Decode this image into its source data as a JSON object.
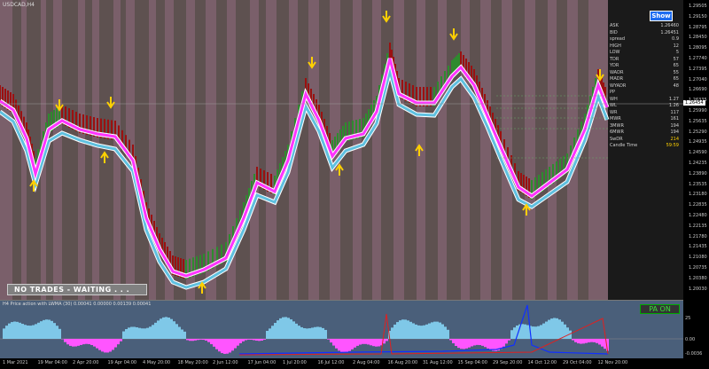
{
  "chart": {
    "title": "USDCAD,H4",
    "show_button": "Show",
    "status_banner": "NO TRADES - WAITING . . .",
    "current_price_tag": "1.26454"
  },
  "info_panel": [
    {
      "k": "ASK",
      "v": "1.26460"
    },
    {
      "k": "BID",
      "v": "1.26451"
    },
    {
      "k": "spread",
      "v": "0.9"
    },
    {
      "k": "HIGH",
      "v": "12"
    },
    {
      "k": "LOW",
      "v": "5"
    },
    {
      "k": "TDR",
      "v": "57"
    },
    {
      "k": "YDR",
      "v": "65"
    },
    {
      "k": "WADR",
      "v": "55"
    },
    {
      "k": "MADR",
      "v": "65"
    },
    {
      "k": "WYADR",
      "v": "48"
    },
    {
      "k": "PP",
      "v": ""
    },
    {
      "k": "WH",
      "v": "1.27"
    },
    {
      "k": "WL",
      "v": "1.26"
    },
    {
      "k": "WR",
      "v": "117"
    },
    {
      "k": "MWR",
      "v": "161"
    },
    {
      "k": "3MWR",
      "v": "194"
    },
    {
      "k": "6MWR",
      "v": "194"
    },
    {
      "k": "SwDR",
      "v": "214"
    },
    {
      "k": "Candle Time",
      "v": "59:59"
    }
  ],
  "price_axis": [
    "1.29505",
    "1.29150",
    "1.28795",
    "1.28450",
    "1.28095",
    "1.27740",
    "1.27395",
    "1.27040",
    "1.26690",
    "1.26335",
    "1.25990",
    "1.25635",
    "1.25290",
    "1.24935",
    "1.24590",
    "1.24235",
    "1.23890",
    "1.23535",
    "1.23180",
    "1.22835",
    "1.22480",
    "1.22135",
    "1.21780",
    "1.21435",
    "1.21080",
    "1.20735",
    "1.20380",
    "1.20030"
  ],
  "indicator": {
    "title": "H4 Price action with LWMA (30) 0.00041 0.00000 0.00139 0.00041",
    "pa_button": "PA ON",
    "axis": [
      "25",
      "0.00",
      "-0.0036"
    ]
  },
  "time_axis": [
    "1 Mar 2021",
    "19 Mar 04:00",
    "2 Apr 20:00",
    "19 Apr 04:00",
    "4 May 20:00",
    "18 May 20:00",
    "2 Jun 12:00",
    "17 Jun 04:00",
    "1 Jul 20:00",
    "16 Jul 12:00",
    "2 Aug 04:00",
    "16 Aug 20:00",
    "31 Aug 12:00",
    "15 Sep 04:00",
    "29 Sep 20:00",
    "14 Oct 12:00",
    "29 Oct 04:00",
    "12 Nov 20:00"
  ],
  "colors": {
    "bg_band_a": "#7a5f6a",
    "bg_band_b": "#5e5150",
    "lwma_fast": "#ff33ff",
    "lwma_slow": "#5fc0df",
    "arrow": "#ffd000",
    "bull_candle": "#2e8b2e",
    "bear_candle": "#9b1010"
  }
}
